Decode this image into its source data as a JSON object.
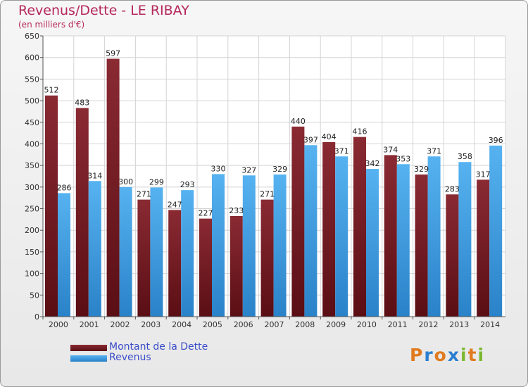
{
  "header": {
    "title": "Revenus/Dette - LE RIBAY",
    "subtitle": "(en milliers d'€)"
  },
  "chart_data": {
    "type": "bar",
    "title": "Revenus/Dette - LE RIBAY",
    "subtitle": "(en milliers d'€)",
    "xlabel": "",
    "ylabel": "",
    "ylim": [
      0,
      650
    ],
    "yticks": [
      0,
      50,
      100,
      150,
      200,
      250,
      300,
      350,
      400,
      450,
      500,
      550,
      600,
      650
    ],
    "grid": true,
    "categories": [
      "2000",
      "2001",
      "2002",
      "2003",
      "2004",
      "2005",
      "2006",
      "2007",
      "2008",
      "2009",
      "2010",
      "2011",
      "2012",
      "2013",
      "2014"
    ],
    "series": [
      {
        "name": "Montant de la Dette",
        "color": "#7a1f2a",
        "values": [
          512,
          483,
          597,
          271,
          247,
          227,
          233,
          271,
          440,
          404,
          416,
          374,
          329,
          283,
          317
        ]
      },
      {
        "name": "Revenus",
        "color": "#3a9de4",
        "values": [
          286,
          314,
          300,
          299,
          293,
          330,
          327,
          329,
          397,
          371,
          342,
          353,
          371,
          358,
          396
        ]
      }
    ],
    "legend": {
      "position": "bottom-left"
    }
  },
  "logo": {
    "letters": [
      "P",
      "r",
      "o",
      "x",
      "i",
      "t",
      "i"
    ],
    "colors": [
      "#e07b1f",
      "#2b7fd0",
      "#e07b1f",
      "#2b7fd0",
      "#7cb82f",
      "#e07b1f",
      "#7cb82f"
    ]
  }
}
